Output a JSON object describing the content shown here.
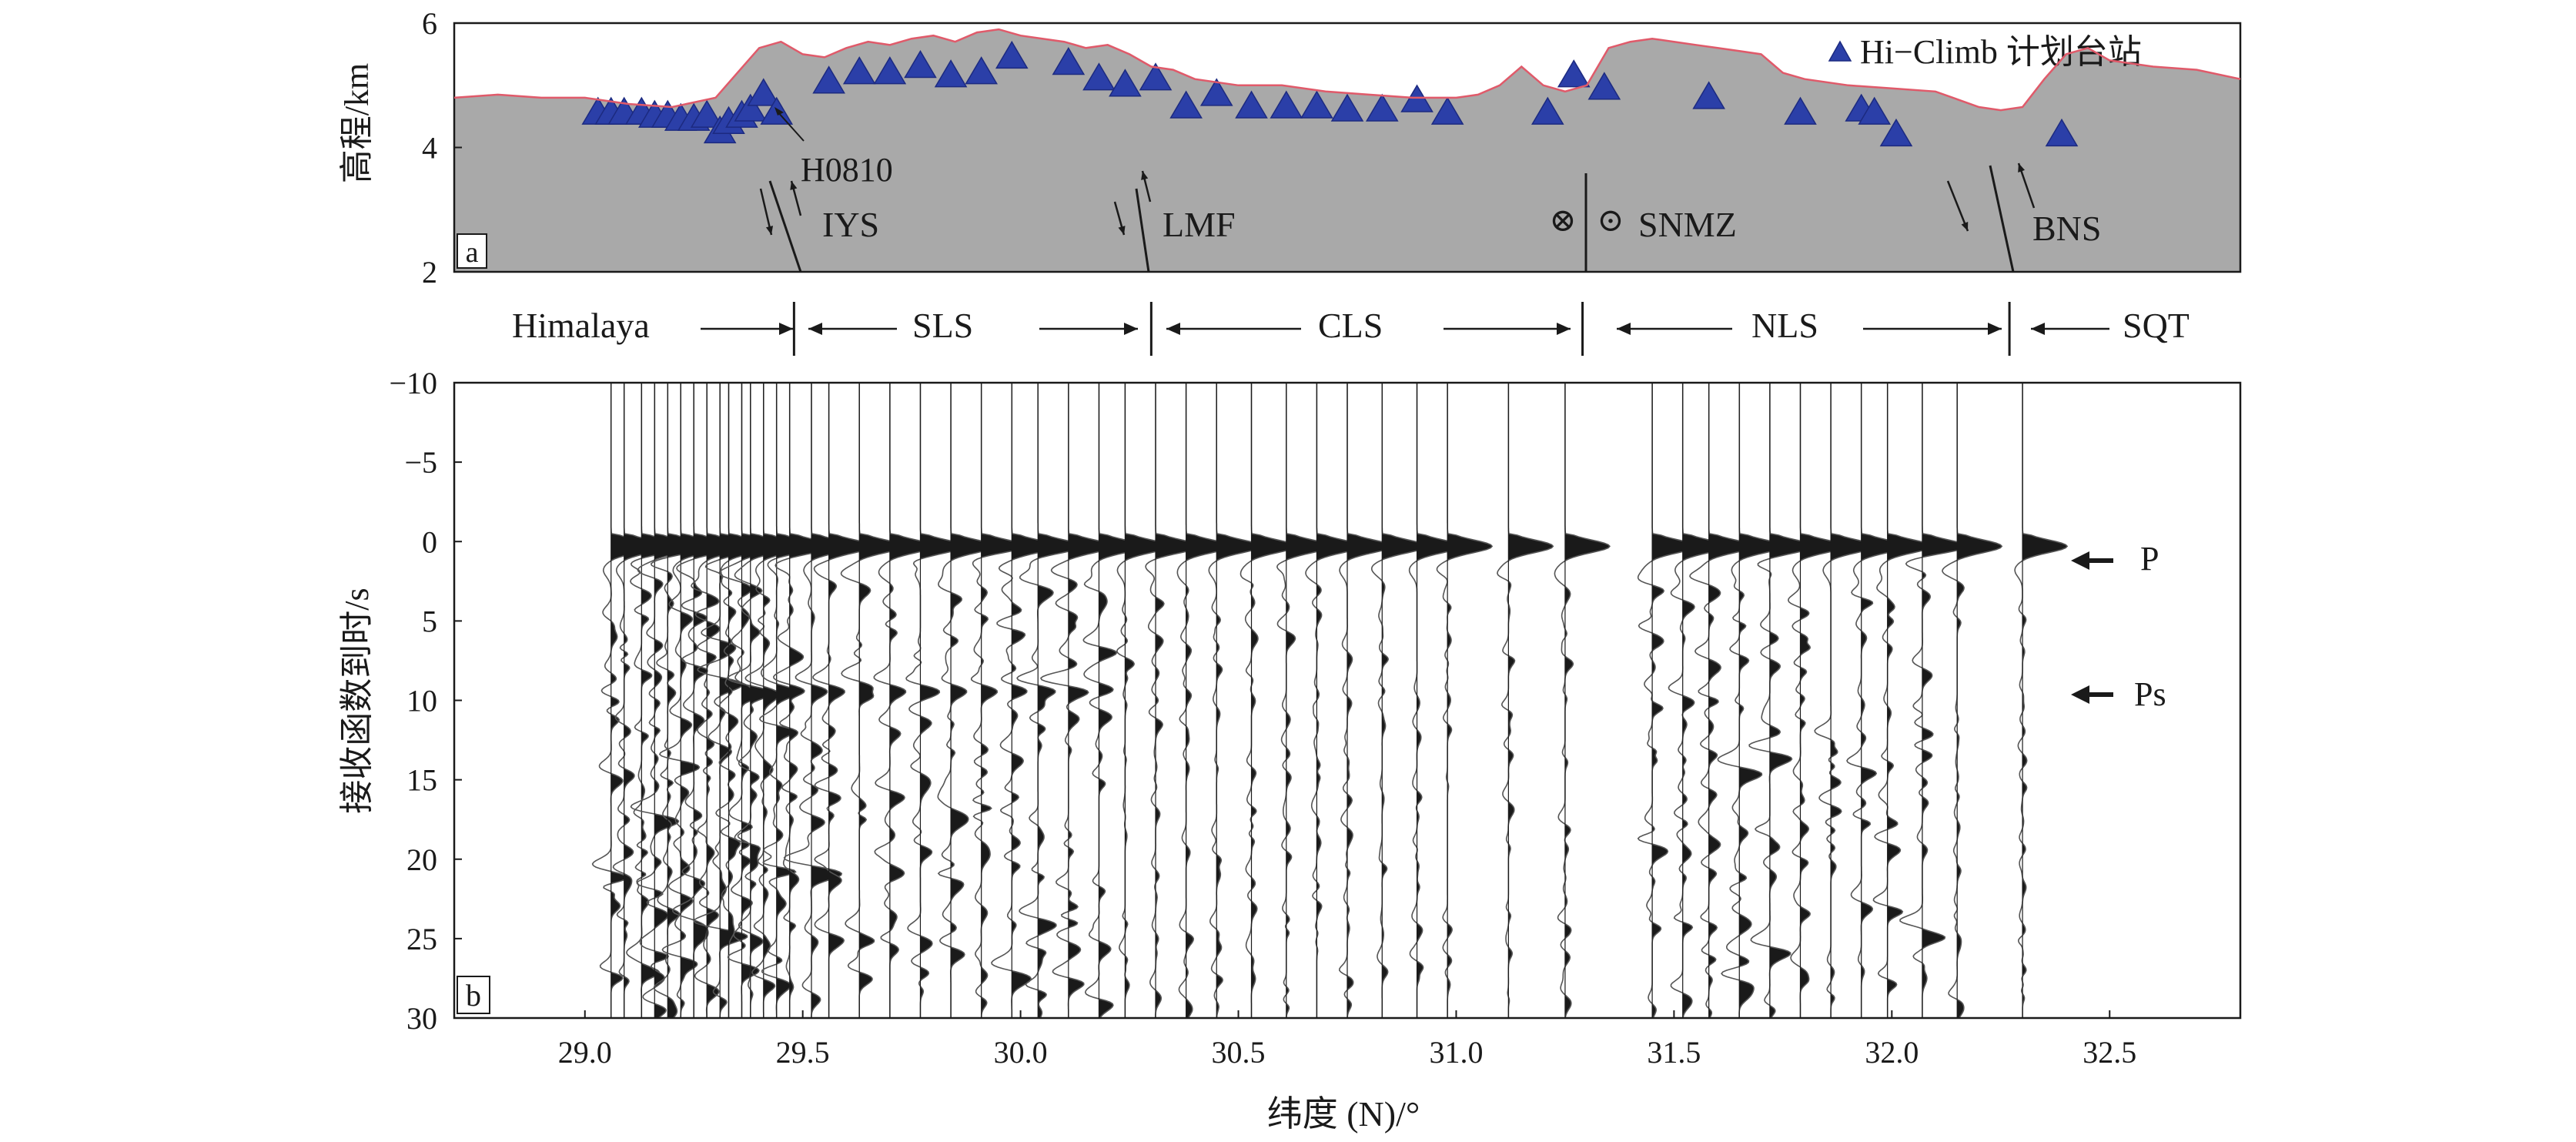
{
  "chart_data": [
    {
      "panel_label": "a",
      "type": "area",
      "ylabel": "高程/km",
      "ylim": [
        2,
        6
      ],
      "y_ticks": [
        "2",
        "4",
        "6"
      ],
      "xlim": [
        28.7,
        32.8
      ],
      "legend": {
        "label": "Hi−Climb 计划台站",
        "position": "top-right"
      },
      "colors": {
        "terrain": "#a9a9a9",
        "terrain_edge": "#e05a6a",
        "station": "#2b3fa8"
      },
      "elevation_profile": {
        "x": [
          28.7,
          28.8,
          28.9,
          29.0,
          29.1,
          29.2,
          29.3,
          29.35,
          29.4,
          29.45,
          29.5,
          29.55,
          29.6,
          29.65,
          29.7,
          29.75,
          29.8,
          29.85,
          29.9,
          29.95,
          30.0,
          30.05,
          30.1,
          30.15,
          30.2,
          30.25,
          30.3,
          30.35,
          30.4,
          30.5,
          30.6,
          30.7,
          30.8,
          30.9,
          31.0,
          31.05,
          31.1,
          31.15,
          31.2,
          31.25,
          31.3,
          31.35,
          31.4,
          31.45,
          31.5,
          31.55,
          31.6,
          31.65,
          31.7,
          31.75,
          31.8,
          31.9,
          32.0,
          32.1,
          32.2,
          32.25,
          32.3,
          32.35,
          32.4,
          32.45,
          32.5,
          32.6,
          32.7,
          32.8
        ],
        "y": [
          4.8,
          4.85,
          4.8,
          4.8,
          4.7,
          4.65,
          4.8,
          5.2,
          5.6,
          5.7,
          5.5,
          5.45,
          5.6,
          5.7,
          5.65,
          5.75,
          5.8,
          5.7,
          5.85,
          5.9,
          5.8,
          5.75,
          5.7,
          5.6,
          5.65,
          5.5,
          5.3,
          5.25,
          5.1,
          5.0,
          5.0,
          4.9,
          4.85,
          4.8,
          4.8,
          4.85,
          5.0,
          5.3,
          5.0,
          4.9,
          5.0,
          5.6,
          5.7,
          5.75,
          5.7,
          5.65,
          5.6,
          5.55,
          5.5,
          5.2,
          5.1,
          5.0,
          4.95,
          4.9,
          4.65,
          4.6,
          4.65,
          5.1,
          5.5,
          5.6,
          5.4,
          5.3,
          5.25,
          5.1
        ]
      },
      "stations": {
        "lat": [
          29.03,
          29.06,
          29.09,
          29.13,
          29.16,
          29.19,
          29.22,
          29.25,
          29.28,
          29.31,
          29.33,
          29.36,
          29.38,
          29.41,
          29.44,
          29.56,
          29.63,
          29.7,
          29.77,
          29.84,
          29.91,
          29.98,
          30.11,
          30.18,
          30.24,
          30.31,
          30.38,
          30.45,
          30.53,
          30.61,
          30.68,
          30.75,
          30.83,
          30.91,
          30.98,
          31.21,
          31.27,
          31.34,
          31.58,
          31.79,
          31.93,
          31.96,
          32.01,
          32.39
        ],
        "elev": [
          4.55,
          4.55,
          4.55,
          4.55,
          4.5,
          4.5,
          4.45,
          4.45,
          4.5,
          4.25,
          4.4,
          4.5,
          4.6,
          4.85,
          4.55,
          5.05,
          5.2,
          5.2,
          5.3,
          5.15,
          5.2,
          5.45,
          5.35,
          5.1,
          5.0,
          5.1,
          4.65,
          4.85,
          4.65,
          4.65,
          4.65,
          4.6,
          4.6,
          4.75,
          4.55,
          4.55,
          5.15,
          4.95,
          4.8,
          4.55,
          4.6,
          4.55,
          4.2,
          4.2
        ]
      },
      "annotations": [
        {
          "text": "H0810",
          "lat": 29.47
        },
        {
          "text": "IYS",
          "lat": 29.5
        },
        {
          "text": "LMF",
          "lat": 30.3
        },
        {
          "text": "SNMZ",
          "lat": 31.28
        },
        {
          "text": "BNS",
          "lat": 32.3
        }
      ],
      "fault_symbols": [
        "⊗",
        "⊙"
      ]
    },
    {
      "panel_label": "b",
      "type": "line",
      "xlabel": "纬度 (N)/°",
      "ylabel": "接收函数到时/s",
      "ylim": [
        -10,
        30
      ],
      "y_axis_inverted": true,
      "xlim": [
        28.7,
        32.8
      ],
      "x_ticks": [
        29.0,
        29.5,
        30.0,
        30.5,
        31.0,
        31.5,
        32.0,
        32.5
      ],
      "x_tick_labels": [
        "29.0",
        "29.5",
        "30.0",
        "30.5",
        "31.0",
        "31.5",
        "32.0",
        "32.5"
      ],
      "y_ticks": [
        -10,
        -5,
        0,
        5,
        10,
        15,
        20,
        25,
        30
      ],
      "y_tick_labels": [
        "−10",
        "−5",
        "0",
        "5",
        "10",
        "15",
        "20",
        "25",
        "30"
      ],
      "trace_latitudes": [
        29.06,
        29.09,
        29.13,
        29.16,
        29.19,
        29.22,
        29.25,
        29.28,
        29.31,
        29.33,
        29.36,
        29.38,
        29.41,
        29.44,
        29.47,
        29.52,
        29.56,
        29.63,
        29.7,
        29.77,
        29.84,
        29.91,
        29.98,
        30.04,
        30.11,
        30.18,
        30.24,
        30.31,
        30.38,
        30.45,
        30.53,
        30.61,
        30.68,
        30.75,
        30.83,
        30.91,
        30.98,
        31.12,
        31.25,
        31.45,
        31.52,
        31.58,
        31.65,
        31.72,
        31.79,
        31.86,
        31.93,
        31.99,
        32.07,
        32.15,
        32.3
      ],
      "phase_labels": [
        {
          "text": "P",
          "time": 1
        },
        {
          "text": "Ps",
          "time": 10
        }
      ],
      "colors": {
        "positive_fill": "#1a1a1a",
        "trace_line": "#555555"
      }
    }
  ],
  "tectonic_units": [
    {
      "label": "Himalaya"
    },
    {
      "label": "SLS"
    },
    {
      "label": "CLS"
    },
    {
      "label": "NLS"
    },
    {
      "label": "SQT"
    }
  ],
  "unit_boundaries": [
    29.48,
    30.3,
    31.29,
    32.27
  ]
}
